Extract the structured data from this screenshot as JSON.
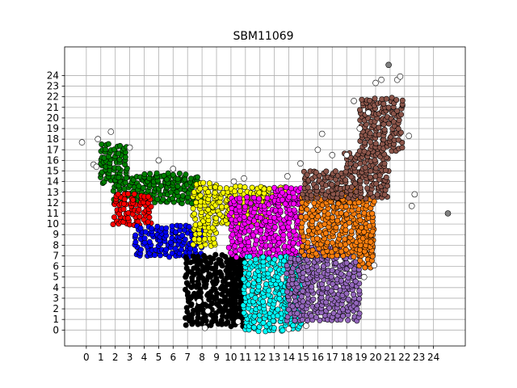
{
  "chart_data": {
    "type": "scatter",
    "title": "SBM11069",
    "xlabel": "",
    "ylabel": "",
    "xlim": [
      -1.5,
      26.2
    ],
    "ylim": [
      -1.5,
      26.7
    ],
    "xticks": [
      0,
      1,
      2,
      3,
      4,
      5,
      6,
      7,
      8,
      9,
      10,
      11,
      12,
      13,
      14,
      15,
      16,
      17,
      18,
      19,
      20,
      21,
      22,
      23,
      24
    ],
    "yticks": [
      0,
      1,
      2,
      3,
      4,
      5,
      6,
      7,
      8,
      9,
      10,
      11,
      12,
      13,
      14,
      15,
      16,
      17,
      18,
      19,
      20,
      21,
      22,
      23,
      24
    ],
    "grid": true,
    "legend": "none",
    "marker_edge_color": "#000000",
    "series_colors": {
      "green": "#008000",
      "red": "#ff0000",
      "blue": "#0000ff",
      "yellow": "#ffff00",
      "black": "#000000",
      "magenta": "#ff00ff",
      "cyan": "#00ffff",
      "purple": "#9467bd",
      "orange": "#ff7f0e",
      "brown": "#8c564b",
      "white": "#ffffff",
      "gray": "#808080"
    },
    "clusters": [
      {
        "color": "green",
        "regions": [
          [
            1,
            3,
            14,
            17.5
          ],
          [
            2,
            8,
            12,
            14.5
          ],
          [
            4,
            7,
            14,
            15
          ]
        ]
      },
      {
        "color": "red",
        "regions": [
          [
            2,
            4.5,
            10,
            13
          ]
        ]
      },
      {
        "color": "blue",
        "regions": [
          [
            3.5,
            8,
            7,
            10
          ]
        ]
      },
      {
        "color": "yellow",
        "regions": [
          [
            7.5,
            9,
            8,
            14
          ],
          [
            9,
            12.5,
            10,
            13.5
          ],
          [
            12,
            14,
            12,
            13.5
          ]
        ]
      },
      {
        "color": "black",
        "regions": [
          [
            7,
            11,
            0.5,
            7
          ],
          [
            10,
            11,
            1,
            7
          ]
        ]
      },
      {
        "color": "magenta",
        "regions": [
          [
            10,
            15,
            7,
            12.5
          ],
          [
            13,
            15,
            12,
            13.5
          ]
        ]
      },
      {
        "color": "cyan",
        "regions": [
          [
            11,
            15,
            0,
            7
          ]
        ]
      },
      {
        "color": "purple",
        "regions": [
          [
            14,
            19,
            1,
            7
          ],
          [
            15,
            18,
            7,
            8
          ]
        ]
      },
      {
        "color": "orange",
        "regions": [
          [
            15,
            20,
            7,
            12.5
          ],
          [
            17,
            19,
            12,
            13.5
          ],
          [
            19,
            20,
            6,
            10
          ]
        ]
      },
      {
        "color": "brown",
        "regions": [
          [
            15,
            21,
            12.5,
            15
          ],
          [
            18,
            21,
            15,
            17
          ],
          [
            19,
            22,
            17,
            22
          ]
        ]
      }
    ],
    "outliers": [
      {
        "x": -0.3,
        "y": 17.7,
        "color": "white"
      },
      {
        "x": 0.8,
        "y": 18.0,
        "color": "white"
      },
      {
        "x": 1.7,
        "y": 18.7,
        "color": "white"
      },
      {
        "x": 0.5,
        "y": 15.6,
        "color": "white"
      },
      {
        "x": 0.7,
        "y": 15.4,
        "color": "white"
      },
      {
        "x": 5.0,
        "y": 16.0,
        "color": "white"
      },
      {
        "x": 13.9,
        "y": 14.5,
        "color": "white"
      },
      {
        "x": 14.8,
        "y": 15.7,
        "color": "white"
      },
      {
        "x": 16.0,
        "y": 17.0,
        "color": "white"
      },
      {
        "x": 16.3,
        "y": 18.5,
        "color": "white"
      },
      {
        "x": 17.0,
        "y": 16.5,
        "color": "white"
      },
      {
        "x": 18.0,
        "y": 16.5,
        "color": "white"
      },
      {
        "x": 18.5,
        "y": 21.6,
        "color": "white"
      },
      {
        "x": 18.9,
        "y": 19.0,
        "color": "white"
      },
      {
        "x": 19.5,
        "y": 20.5,
        "color": "white"
      },
      {
        "x": 20.0,
        "y": 23.3,
        "color": "white"
      },
      {
        "x": 20.4,
        "y": 23.6,
        "color": "white"
      },
      {
        "x": 21.5,
        "y": 23.6,
        "color": "white"
      },
      {
        "x": 21.7,
        "y": 23.9,
        "color": "white"
      },
      {
        "x": 22.7,
        "y": 12.8,
        "color": "white"
      },
      {
        "x": 22.5,
        "y": 11.7,
        "color": "white"
      },
      {
        "x": 22.3,
        "y": 18.3,
        "color": "white"
      },
      {
        "x": 19.9,
        "y": 6.1,
        "color": "white"
      },
      {
        "x": 19.2,
        "y": 5.0,
        "color": "white"
      },
      {
        "x": 8.2,
        "y": 0.2,
        "color": "white"
      },
      {
        "x": 10.5,
        "y": 0.8,
        "color": "white"
      },
      {
        "x": 14.0,
        "y": 0.1,
        "color": "white"
      },
      {
        "x": 15.2,
        "y": 0.4,
        "color": "white"
      },
      {
        "x": 10.2,
        "y": 14.0,
        "color": "white"
      },
      {
        "x": 10.9,
        "y": 14.3,
        "color": "white"
      },
      {
        "x": 7.8,
        "y": 2.7,
        "color": "white"
      },
      {
        "x": 8.4,
        "y": 1.8,
        "color": "white"
      },
      {
        "x": 3.0,
        "y": 17.2,
        "color": "white"
      },
      {
        "x": 6.0,
        "y": 15.2,
        "color": "white"
      },
      {
        "x": 20.9,
        "y": 25.0,
        "color": "gray"
      },
      {
        "x": 25.0,
        "y": 11.0,
        "color": "gray"
      }
    ]
  }
}
